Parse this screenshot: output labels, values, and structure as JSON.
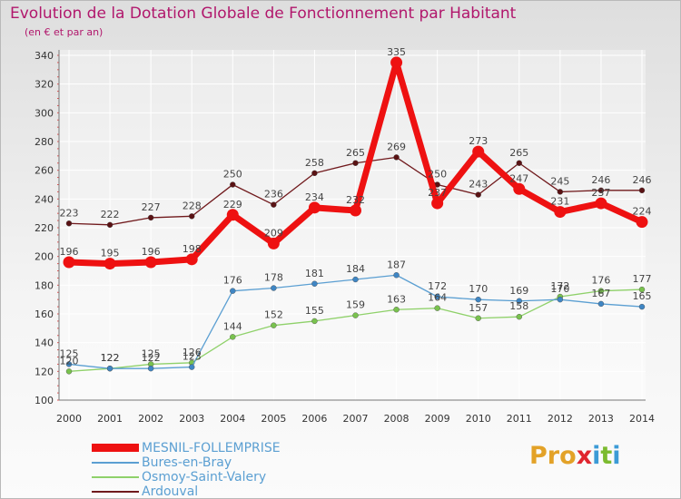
{
  "header": {
    "title": "Evolution de la Dotation Globale de Fonctionnement par Habitant",
    "subtitle": "(en € et par an)"
  },
  "logo": {
    "text": "Proxiti",
    "letters": [
      "P",
      "r",
      "o",
      "x",
      "i",
      "t",
      "i"
    ],
    "letter_colors": [
      "#e3a228",
      "#e3a228",
      "#e3a228",
      "#e0262f",
      "#3c9bd6",
      "#7cbb2f",
      "#3c9bd6"
    ]
  },
  "chart_data": {
    "type": "line",
    "title": "Evolution de la Dotation Globale de Fonctionnement par Habitant",
    "subtitle": "(en € et par an)",
    "xlabel": "",
    "ylabel": "",
    "ylim": [
      100,
      340
    ],
    "y_ticks": [
      100,
      120,
      140,
      160,
      180,
      200,
      220,
      240,
      260,
      280,
      300,
      320,
      340
    ],
    "grid": true,
    "legend_position": "bottom-left",
    "x": [
      "2000",
      "2001",
      "2002",
      "2003",
      "2004",
      "2005",
      "2006",
      "2007",
      "2008",
      "2009",
      "2010",
      "2011",
      "2012",
      "2013",
      "2014"
    ],
    "series": [
      {
        "name": "Ardouval",
        "color": "#70191c",
        "values": [
          223,
          222,
          227,
          228,
          250,
          236,
          258,
          265,
          269,
          250,
          243,
          265,
          245,
          246,
          246
        ]
      },
      {
        "name": "Osmoy-Saint-Valery",
        "color": "#8fd16a",
        "values": [
          120,
          122,
          125,
          126,
          144,
          152,
          155,
          159,
          163,
          164,
          157,
          158,
          172,
          176,
          177
        ]
      },
      {
        "name": "Bures-en-Bray",
        "color": "#5b9fd2",
        "values": [
          125,
          122,
          122,
          123,
          176,
          178,
          181,
          184,
          187,
          172,
          170,
          169,
          170,
          167,
          165
        ]
      },
      {
        "name": "MESNIL-FOLLEMPRISE",
        "color": "#ee1111",
        "values": [
          196,
          195,
          196,
          198,
          229,
          209,
          234,
          232,
          335,
          237,
          273,
          247,
          231,
          237,
          224
        ]
      }
    ],
    "data_labels": {
      "Ardouval": [
        "223",
        "222",
        "227",
        "228",
        "250",
        "236",
        "258",
        "265",
        "269",
        "250",
        "243",
        "265",
        "245",
        "246",
        "246"
      ],
      "Osmoy-Saint-Valery": [
        "120",
        "122",
        "125",
        "126",
        "144",
        "152",
        "155",
        "159",
        "163",
        "164",
        "157",
        "158",
        "172",
        "176",
        "177"
      ],
      "Bures-en-Bray": [
        "125",
        "122",
        "122",
        "123",
        "176",
        "178",
        "181",
        "184",
        "187",
        "172",
        "170",
        "169",
        "170",
        "167",
        "165"
      ],
      "MESNIL-FOLLEMPRISE": [
        "196",
        "195",
        "196",
        "198",
        "229",
        "209",
        "234",
        "232",
        "335",
        "237",
        "273",
        "247",
        "231",
        "237",
        "224"
      ]
    }
  },
  "legend": [
    {
      "label": "MESNIL-FOLLEMPRISE",
      "color": "#ee1111"
    },
    {
      "label": "Bures-en-Bray",
      "color": "#5b9fd2"
    },
    {
      "label": "Osmoy-Saint-Valery",
      "color": "#8fd16a"
    },
    {
      "label": "Ardouval",
      "color": "#70191c"
    }
  ]
}
